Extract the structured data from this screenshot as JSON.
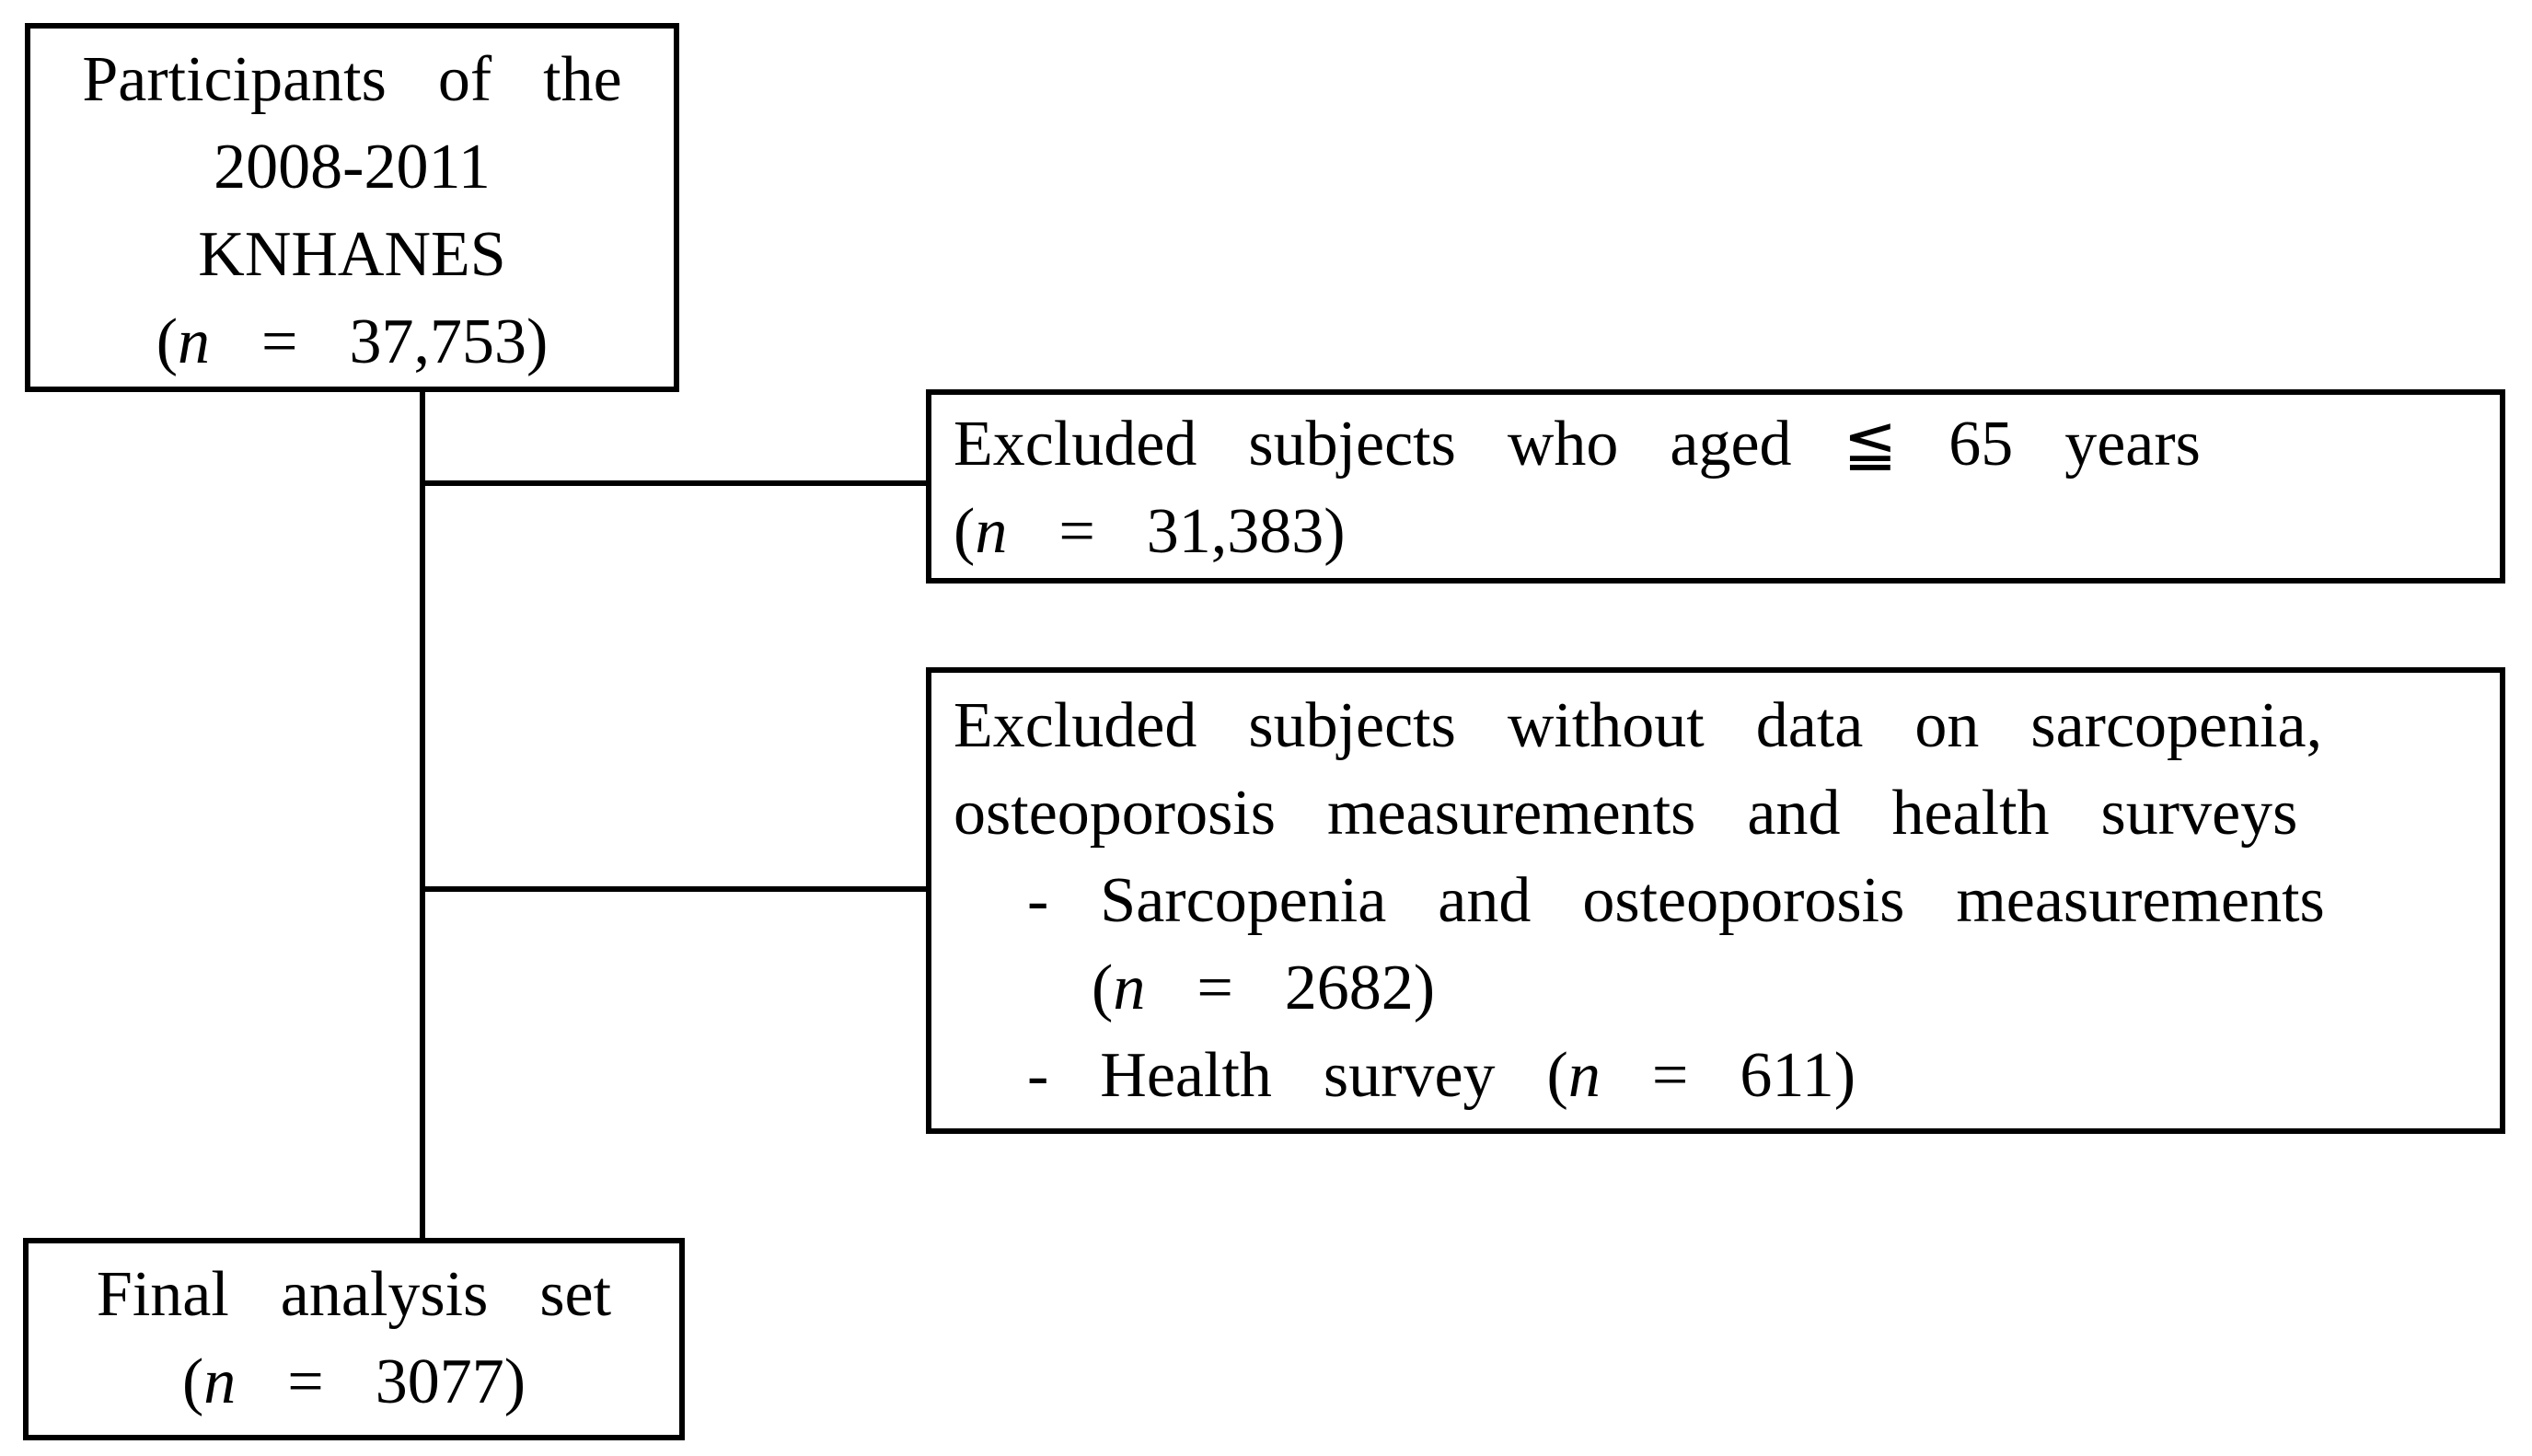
{
  "colors": {
    "border": "#000000",
    "text": "#000000",
    "background": "#ffffff"
  },
  "boxes": {
    "participants": {
      "lines": [
        "Participants of the",
        "2008-2011",
        "KNHANES",
        "(n = 37,753)"
      ]
    },
    "excluded_age": {
      "lines": [
        "Excluded subjects who aged ≦ 65 years",
        "(n = 31,383)"
      ]
    },
    "excluded_missing_data": {
      "lines": [
        "Excluded subjects without data on sarcopenia,",
        "osteoporosis measurements and health surveys",
        "- Sarcopenia and osteoporosis measurements",
        "(n = 2682)",
        "- Health survey (n = 611)"
      ]
    },
    "final_analysis": {
      "lines": [
        "Final analysis set",
        "(n = 3077)"
      ]
    }
  }
}
